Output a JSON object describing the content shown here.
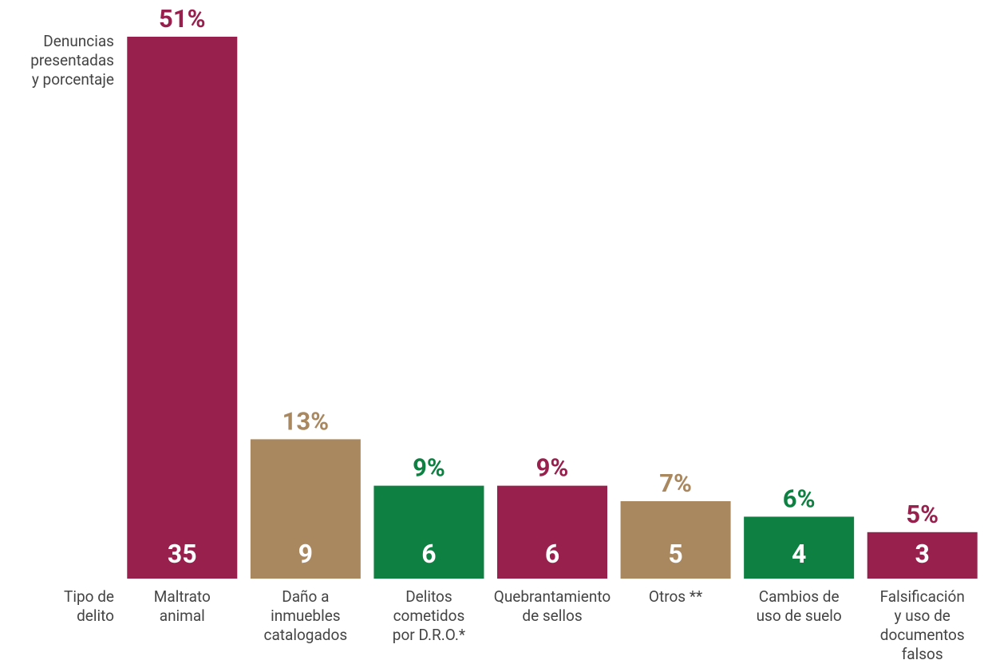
{
  "chart_data": {
    "type": "bar",
    "y_axis_label": "Denuncias\npresentadas\ny porcentaje",
    "x_axis_label": "Tipo de\ndelito",
    "categories": [
      "Maltrato\nanimal",
      "Daño a\ninmuebles\ncatalogados",
      "Delitos\ncometidos\npor D.R.O.*",
      "Quebrantamiento\nde sellos",
      "Otros **",
      "Cambios de\nuso de suelo",
      "Falsificación\ny uso de\ndocumentos\nfalsos"
    ],
    "values": [
      35,
      9,
      6,
      6,
      5,
      4,
      3
    ],
    "percent_labels": [
      "51%",
      "13%",
      "9%",
      "9%",
      "7%",
      "6%",
      "5%"
    ],
    "colors": [
      "#98204d",
      "#a9875f",
      "#0d8042",
      "#98204d",
      "#a9875f",
      "#0d8042",
      "#98204d"
    ],
    "ylim": [
      0,
      35
    ]
  }
}
